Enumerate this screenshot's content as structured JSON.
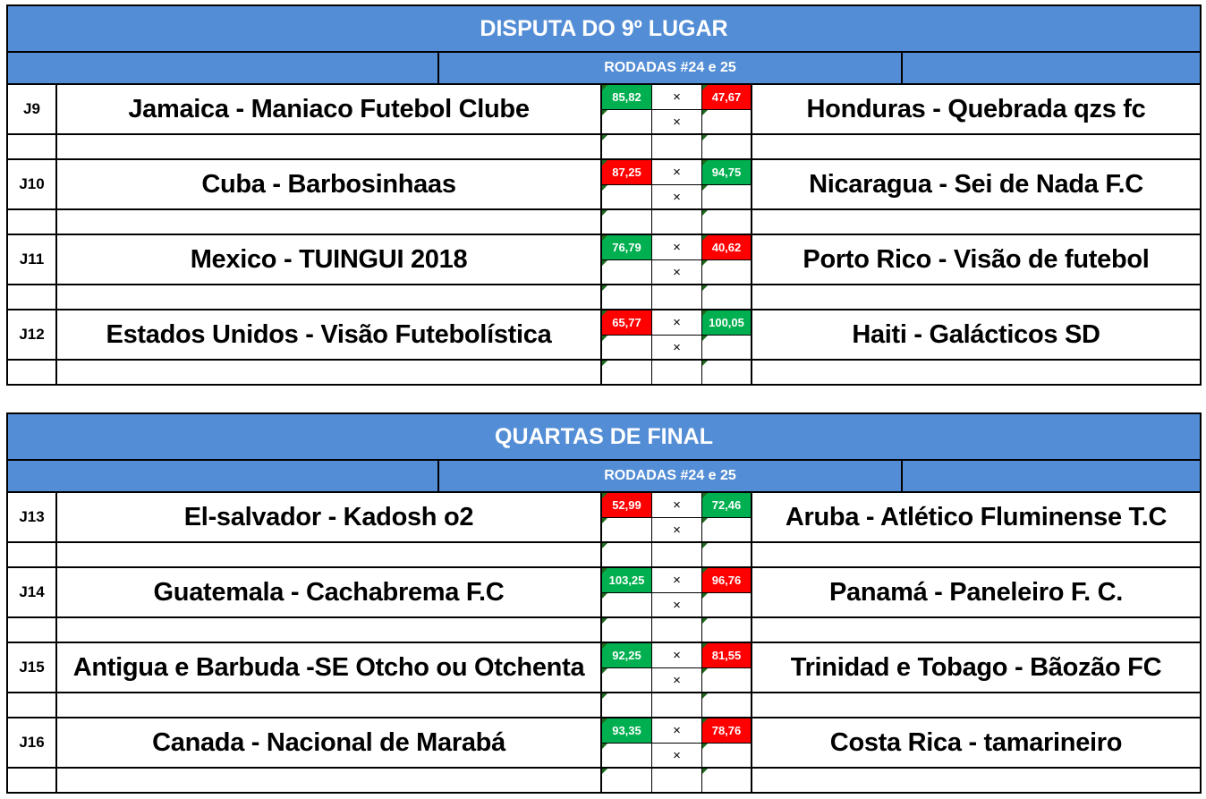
{
  "colors": {
    "header_blue": "#538dd5",
    "win_green": "#00b050",
    "lose_red": "#ff0000"
  },
  "tables": [
    {
      "title": "DISPUTA DO 9º LUGAR",
      "subtitle": "RODADAS #24 e 25",
      "matches": [
        {
          "id": "J9",
          "home": "Jamaica -  Maniaco Futebol Clube",
          "home_score": "85,82",
          "home_result": "win",
          "vs": "×",
          "away_score": "47,67",
          "away_result": "lose",
          "away": "Honduras - Quebrada qzs fc"
        },
        {
          "id": "J10",
          "home": "Cuba - Barbosinhaas",
          "home_score": "87,25",
          "home_result": "lose",
          "vs": "×",
          "away_score": "94,75",
          "away_result": "win",
          "away": "Nicaragua - Sei de Nada F.C"
        },
        {
          "id": "J11",
          "home": "Mexico - TUINGUI 2018",
          "home_score": "76,79",
          "home_result": "win",
          "vs": "×",
          "away_score": "40,62",
          "away_result": "lose",
          "away": "Porto Rico - Visão de futebol"
        },
        {
          "id": "J12",
          "home": "Estados Unidos - Visão Futebolística",
          "home_score": "65,77",
          "home_result": "lose",
          "vs": "×",
          "away_score": "100,05",
          "away_result": "win",
          "away": "Haiti - Galácticos SD"
        }
      ]
    },
    {
      "title": "QUARTAS DE FINAL",
      "subtitle": "RODADAS #24 e 25",
      "matches": [
        {
          "id": "J13",
          "home": "El-salvador - Kadosh o2",
          "home_score": "52,99",
          "home_result": "lose",
          "vs": "×",
          "away_score": "72,46",
          "away_result": "win",
          "away": "Aruba - Atlético Fluminense T.C"
        },
        {
          "id": "J14",
          "home": "Guatemala - Cachabrema F.C",
          "home_score": "103,25",
          "home_result": "win",
          "vs": "×",
          "away_score": "96,76",
          "away_result": "lose",
          "away": "Panamá - Paneleiro F. C."
        },
        {
          "id": "J15",
          "home": "Antigua e Barbuda -SE Otcho ou Otchenta",
          "home_score": "92,25",
          "home_result": "win",
          "vs": "×",
          "away_score": "81,55",
          "away_result": "lose",
          "away": "Trinidad e Tobago - Bãozão FC"
        },
        {
          "id": "J16",
          "home": "Canada - Nacional de Marabá",
          "home_score": "93,35",
          "home_result": "win",
          "vs": "×",
          "away_score": "78,76",
          "away_result": "lose",
          "away": "Costa Rica - tamarineiro"
        }
      ]
    }
  ]
}
